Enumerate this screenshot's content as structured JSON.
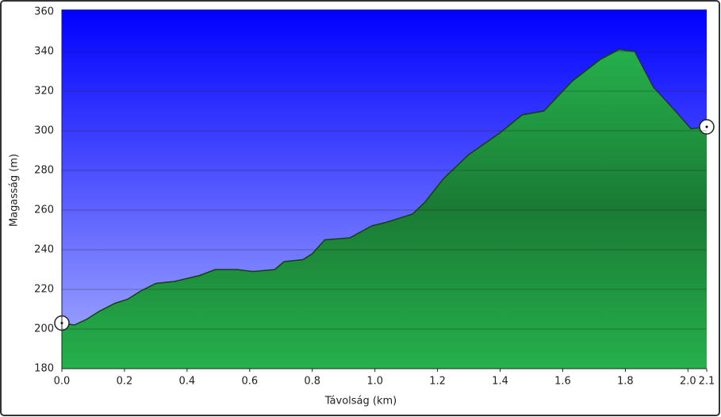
{
  "chart_data": {
    "type": "area",
    "xlabel": "Távolság   (km)",
    "ylabel": "Magasság (m)",
    "x": [
      0,
      0.04,
      0.08,
      0.12,
      0.17,
      0.21,
      0.25,
      0.3,
      0.36,
      0.44,
      0.49,
      0.56,
      0.61,
      0.68,
      0.71,
      0.77,
      0.8,
      0.84,
      0.92,
      0.99,
      1.04,
      1.12,
      1.16,
      1.22,
      1.3,
      1.4,
      1.47,
      1.54,
      1.63,
      1.72,
      1.78,
      1.83,
      1.89,
      1.96,
      2.01,
      2.06
    ],
    "values": [
      203,
      202,
      205,
      209,
      213,
      215,
      219,
      223,
      224,
      227,
      230,
      230,
      229,
      230,
      234,
      235,
      238,
      245,
      246,
      252,
      254,
      258,
      264,
      276,
      288,
      299,
      308,
      310,
      325,
      336,
      341,
      340,
      322,
      310,
      301,
      302
    ],
    "color": "#22a84a",
    "xlim": [
      0,
      2.06
    ],
    "ylim": [
      180,
      360
    ],
    "xticks": [
      {
        "value": 0,
        "label": "0.0"
      },
      {
        "value": 0.2,
        "label": "0.2"
      },
      {
        "value": 0.4,
        "label": "0.4"
      },
      {
        "value": 0.6,
        "label": "0.6"
      },
      {
        "value": 0.8,
        "label": "0.8"
      },
      {
        "value": 1,
        "label": "1.0"
      },
      {
        "value": 1.2,
        "label": "1.2"
      },
      {
        "value": 1.4,
        "label": "1.4"
      },
      {
        "value": 1.6,
        "label": "1.6"
      },
      {
        "value": 1.8,
        "label": "1.8"
      },
      {
        "value": 2,
        "label": "2.0"
      },
      {
        "value": 2.06,
        "label": "2.1"
      }
    ],
    "yticks": [
      180,
      200,
      220,
      240,
      260,
      280,
      300,
      320,
      340,
      360
    ],
    "grid": true
  }
}
